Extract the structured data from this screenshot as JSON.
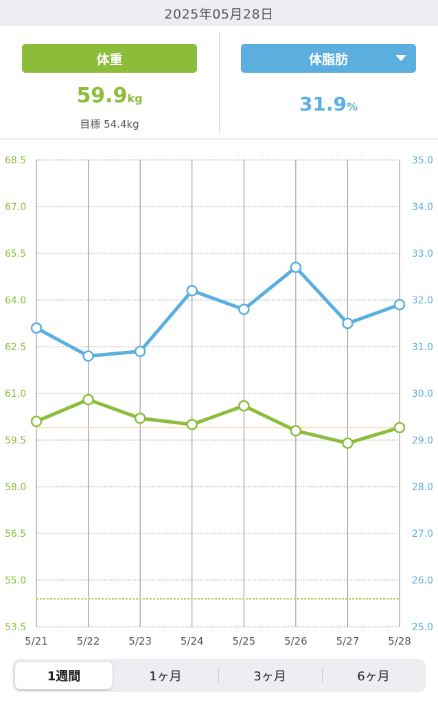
{
  "header": {
    "date": "2025年05月28日"
  },
  "weight_panel": {
    "label": "体重",
    "value": "59.9",
    "unit": "kg",
    "goal_label": "目標",
    "goal_value": "54.4kg"
  },
  "fat_panel": {
    "label": "体脂肪",
    "value": "31.9",
    "unit": "%"
  },
  "colors": {
    "weight": "#8cbd3a",
    "fat": "#5aafdf",
    "goal_line": "#b5d66a",
    "current_line": "#f5c98a"
  },
  "chart_data": {
    "type": "line",
    "categories": [
      "5/21",
      "5/22",
      "5/23",
      "5/24",
      "5/25",
      "5/26",
      "5/27",
      "5/28"
    ],
    "series": [
      {
        "name": "体重",
        "axis": "left",
        "values": [
          60.1,
          60.8,
          60.2,
          60.0,
          60.6,
          59.8,
          59.4,
          59.9
        ]
      },
      {
        "name": "体脂肪",
        "axis": "right",
        "values": [
          31.4,
          30.8,
          30.9,
          32.2,
          31.8,
          32.7,
          31.5,
          31.9
        ]
      }
    ],
    "y_left": {
      "range": [
        53.5,
        68.5
      ],
      "ticks": [
        "53.5",
        "55.0",
        "56.5",
        "58.0",
        "59.5",
        "61.0",
        "62.5",
        "64.0",
        "65.5",
        "67.0",
        "68.5"
      ]
    },
    "y_right": {
      "range": [
        25.0,
        35.0
      ],
      "ticks": [
        "25.0",
        "26.0",
        "27.0",
        "28.0",
        "29.0",
        "30.0",
        "31.0",
        "32.0",
        "33.0",
        "34.0",
        "35.0"
      ]
    },
    "goal_weight": 54.4,
    "current_weight_line": 59.9,
    "grid": true
  },
  "period_tabs": [
    {
      "label": "1週間",
      "active": true
    },
    {
      "label": "1ヶ月",
      "active": false
    },
    {
      "label": "3ヶ月",
      "active": false
    },
    {
      "label": "6ヶ月",
      "active": false
    }
  ]
}
